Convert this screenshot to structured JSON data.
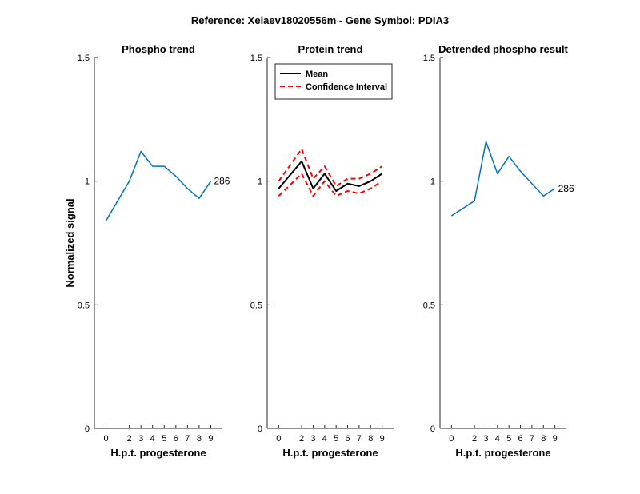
{
  "figure": {
    "suptitle": "Reference:  Xelaev18020556m - Gene Symbol:  PDIA3"
  },
  "chart_data": [
    {
      "type": "line",
      "title": "Phospho trend",
      "xlabel": "H.p.t. progesterone",
      "ylabel": "Normalized signal",
      "x": [
        0,
        2,
        3,
        4,
        5,
        6,
        7,
        8,
        9
      ],
      "xticks": [
        "0",
        "2",
        "3",
        "4",
        "5",
        "6",
        "7",
        "8",
        "9"
      ],
      "ylim": [
        0,
        1.5
      ],
      "yticks": [
        "0",
        "0.5",
        "1",
        "1.5"
      ],
      "series": [
        {
          "values": [
            0.84,
            1.0,
            1.12,
            1.06,
            1.06,
            1.02,
            0.97,
            0.93,
            1.0
          ],
          "color": "#0072bd",
          "style": "solid"
        }
      ],
      "annotation": "286"
    },
    {
      "type": "line",
      "title": "Protein trend",
      "xlabel": "H.p.t. progesterone",
      "ylabel": "",
      "x": [
        0,
        2,
        3,
        4,
        5,
        6,
        7,
        8,
        9
      ],
      "xticks": [
        "0",
        "2",
        "3",
        "4",
        "5",
        "6",
        "7",
        "8",
        "9"
      ],
      "ylim": [
        0,
        1.5
      ],
      "yticks": [
        "0",
        "0.5",
        "1",
        "1.5"
      ],
      "legend_position": "top-left",
      "series": [
        {
          "name": "Mean",
          "values": [
            0.97,
            1.08,
            0.97,
            1.03,
            0.96,
            0.99,
            0.98,
            1.0,
            1.03
          ],
          "color": "#000000",
          "style": "solid"
        },
        {
          "name": "Confidence Interval",
          "values": [
            1.0,
            1.13,
            1.01,
            1.06,
            0.98,
            1.01,
            1.01,
            1.03,
            1.06
          ],
          "color": "#ff0000",
          "style": "dashed"
        },
        {
          "name": "",
          "values": [
            0.94,
            1.03,
            0.94,
            1.0,
            0.94,
            0.96,
            0.95,
            0.97,
            1.0
          ],
          "color": "#ff0000",
          "style": "dashed"
        }
      ]
    },
    {
      "type": "line",
      "title": "Detrended phospho result",
      "xlabel": "H.p.t. progesterone",
      "ylabel": "",
      "x": [
        0,
        2,
        3,
        4,
        5,
        6,
        7,
        8,
        9
      ],
      "xticks": [
        "0",
        "2",
        "3",
        "4",
        "5",
        "6",
        "7",
        "8",
        "9"
      ],
      "ylim": [
        0,
        1.5
      ],
      "yticks": [
        "0",
        "0.5",
        "1",
        "1.5"
      ],
      "series": [
        {
          "values": [
            0.86,
            0.92,
            1.16,
            1.03,
            1.1,
            1.04,
            0.99,
            0.94,
            0.97
          ],
          "color": "#0072bd",
          "style": "solid"
        }
      ],
      "annotation": "286"
    }
  ]
}
